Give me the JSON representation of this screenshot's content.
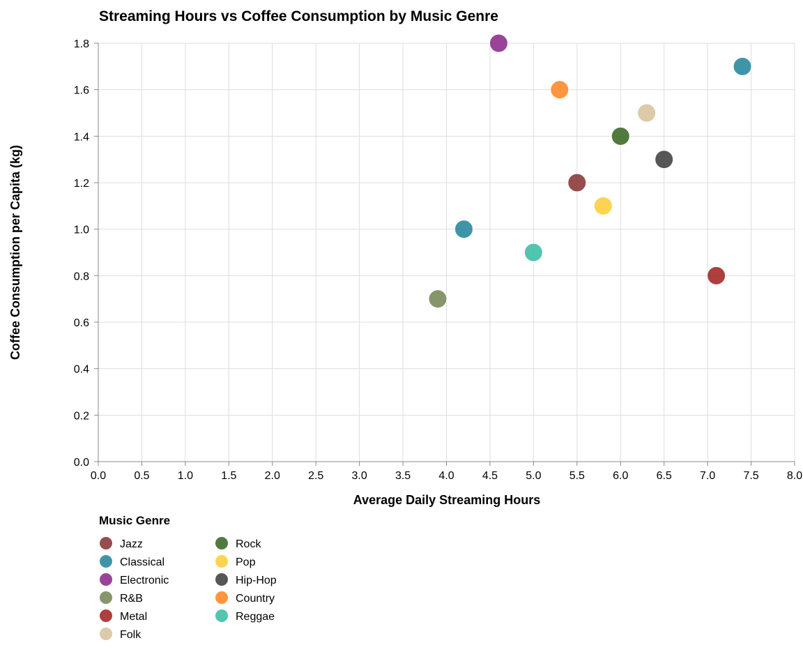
{
  "chart_data": {
    "type": "scatter",
    "title": "Streaming Hours vs Coffee Consumption by Music Genre",
    "xlabel": "Average Daily Streaming Hours",
    "ylabel": "Coffee Consumption per Capita (kg)",
    "xlim": [
      0,
      8
    ],
    "ylim": [
      0,
      1.8
    ],
    "x_ticks": [
      "0.0",
      "0.5",
      "1.0",
      "1.5",
      "2.0",
      "2.5",
      "3.0",
      "3.5",
      "4.0",
      "4.5",
      "5.0",
      "5.5",
      "6.0",
      "6.5",
      "7.0",
      "7.5",
      "8.0"
    ],
    "y_ticks": [
      "0.0",
      "0.2",
      "0.4",
      "0.6",
      "0.8",
      "1.0",
      "1.2",
      "1.4",
      "1.6",
      "1.8"
    ],
    "grid": true,
    "legend": {
      "title": "Music Genre",
      "placement": "bottom-left",
      "entries": [
        {
          "name": "Jazz",
          "color": "#8c3a3a"
        },
        {
          "name": "Classical",
          "color": "#2a8a9f"
        },
        {
          "name": "Electronic",
          "color": "#8e2f8e"
        },
        {
          "name": "R&B",
          "color": "#7a8a5a"
        },
        {
          "name": "Metal",
          "color": "#a52a2a"
        },
        {
          "name": "Folk",
          "color": "#d8c4a0"
        },
        {
          "name": "Rock",
          "color": "#3f6b2a"
        },
        {
          "name": "Pop",
          "color": "#fdcf3f"
        },
        {
          "name": "Hip-Hop",
          "color": "#444444"
        },
        {
          "name": "Country",
          "color": "#ff8a2a"
        },
        {
          "name": "Reggae",
          "color": "#3fbfa5"
        }
      ]
    },
    "points": [
      {
        "genre": "Jazz",
        "x": 5.5,
        "y": 1.2
      },
      {
        "genre": "Classical",
        "x": 4.2,
        "y": 1.0
      },
      {
        "genre": "Classical",
        "x": 7.4,
        "y": 1.7
      },
      {
        "genre": "Electronic",
        "x": 4.6,
        "y": 1.8
      },
      {
        "genre": "R&B",
        "x": 3.9,
        "y": 0.7
      },
      {
        "genre": "Metal",
        "x": 7.1,
        "y": 0.8
      },
      {
        "genre": "Folk",
        "x": 6.3,
        "y": 1.5
      },
      {
        "genre": "Rock",
        "x": 6.0,
        "y": 1.4
      },
      {
        "genre": "Pop",
        "x": 5.8,
        "y": 1.1
      },
      {
        "genre": "Hip-Hop",
        "x": 6.5,
        "y": 1.3
      },
      {
        "genre": "Country",
        "x": 5.3,
        "y": 1.6
      },
      {
        "genre": "Reggae",
        "x": 5.0,
        "y": 0.9
      }
    ]
  }
}
